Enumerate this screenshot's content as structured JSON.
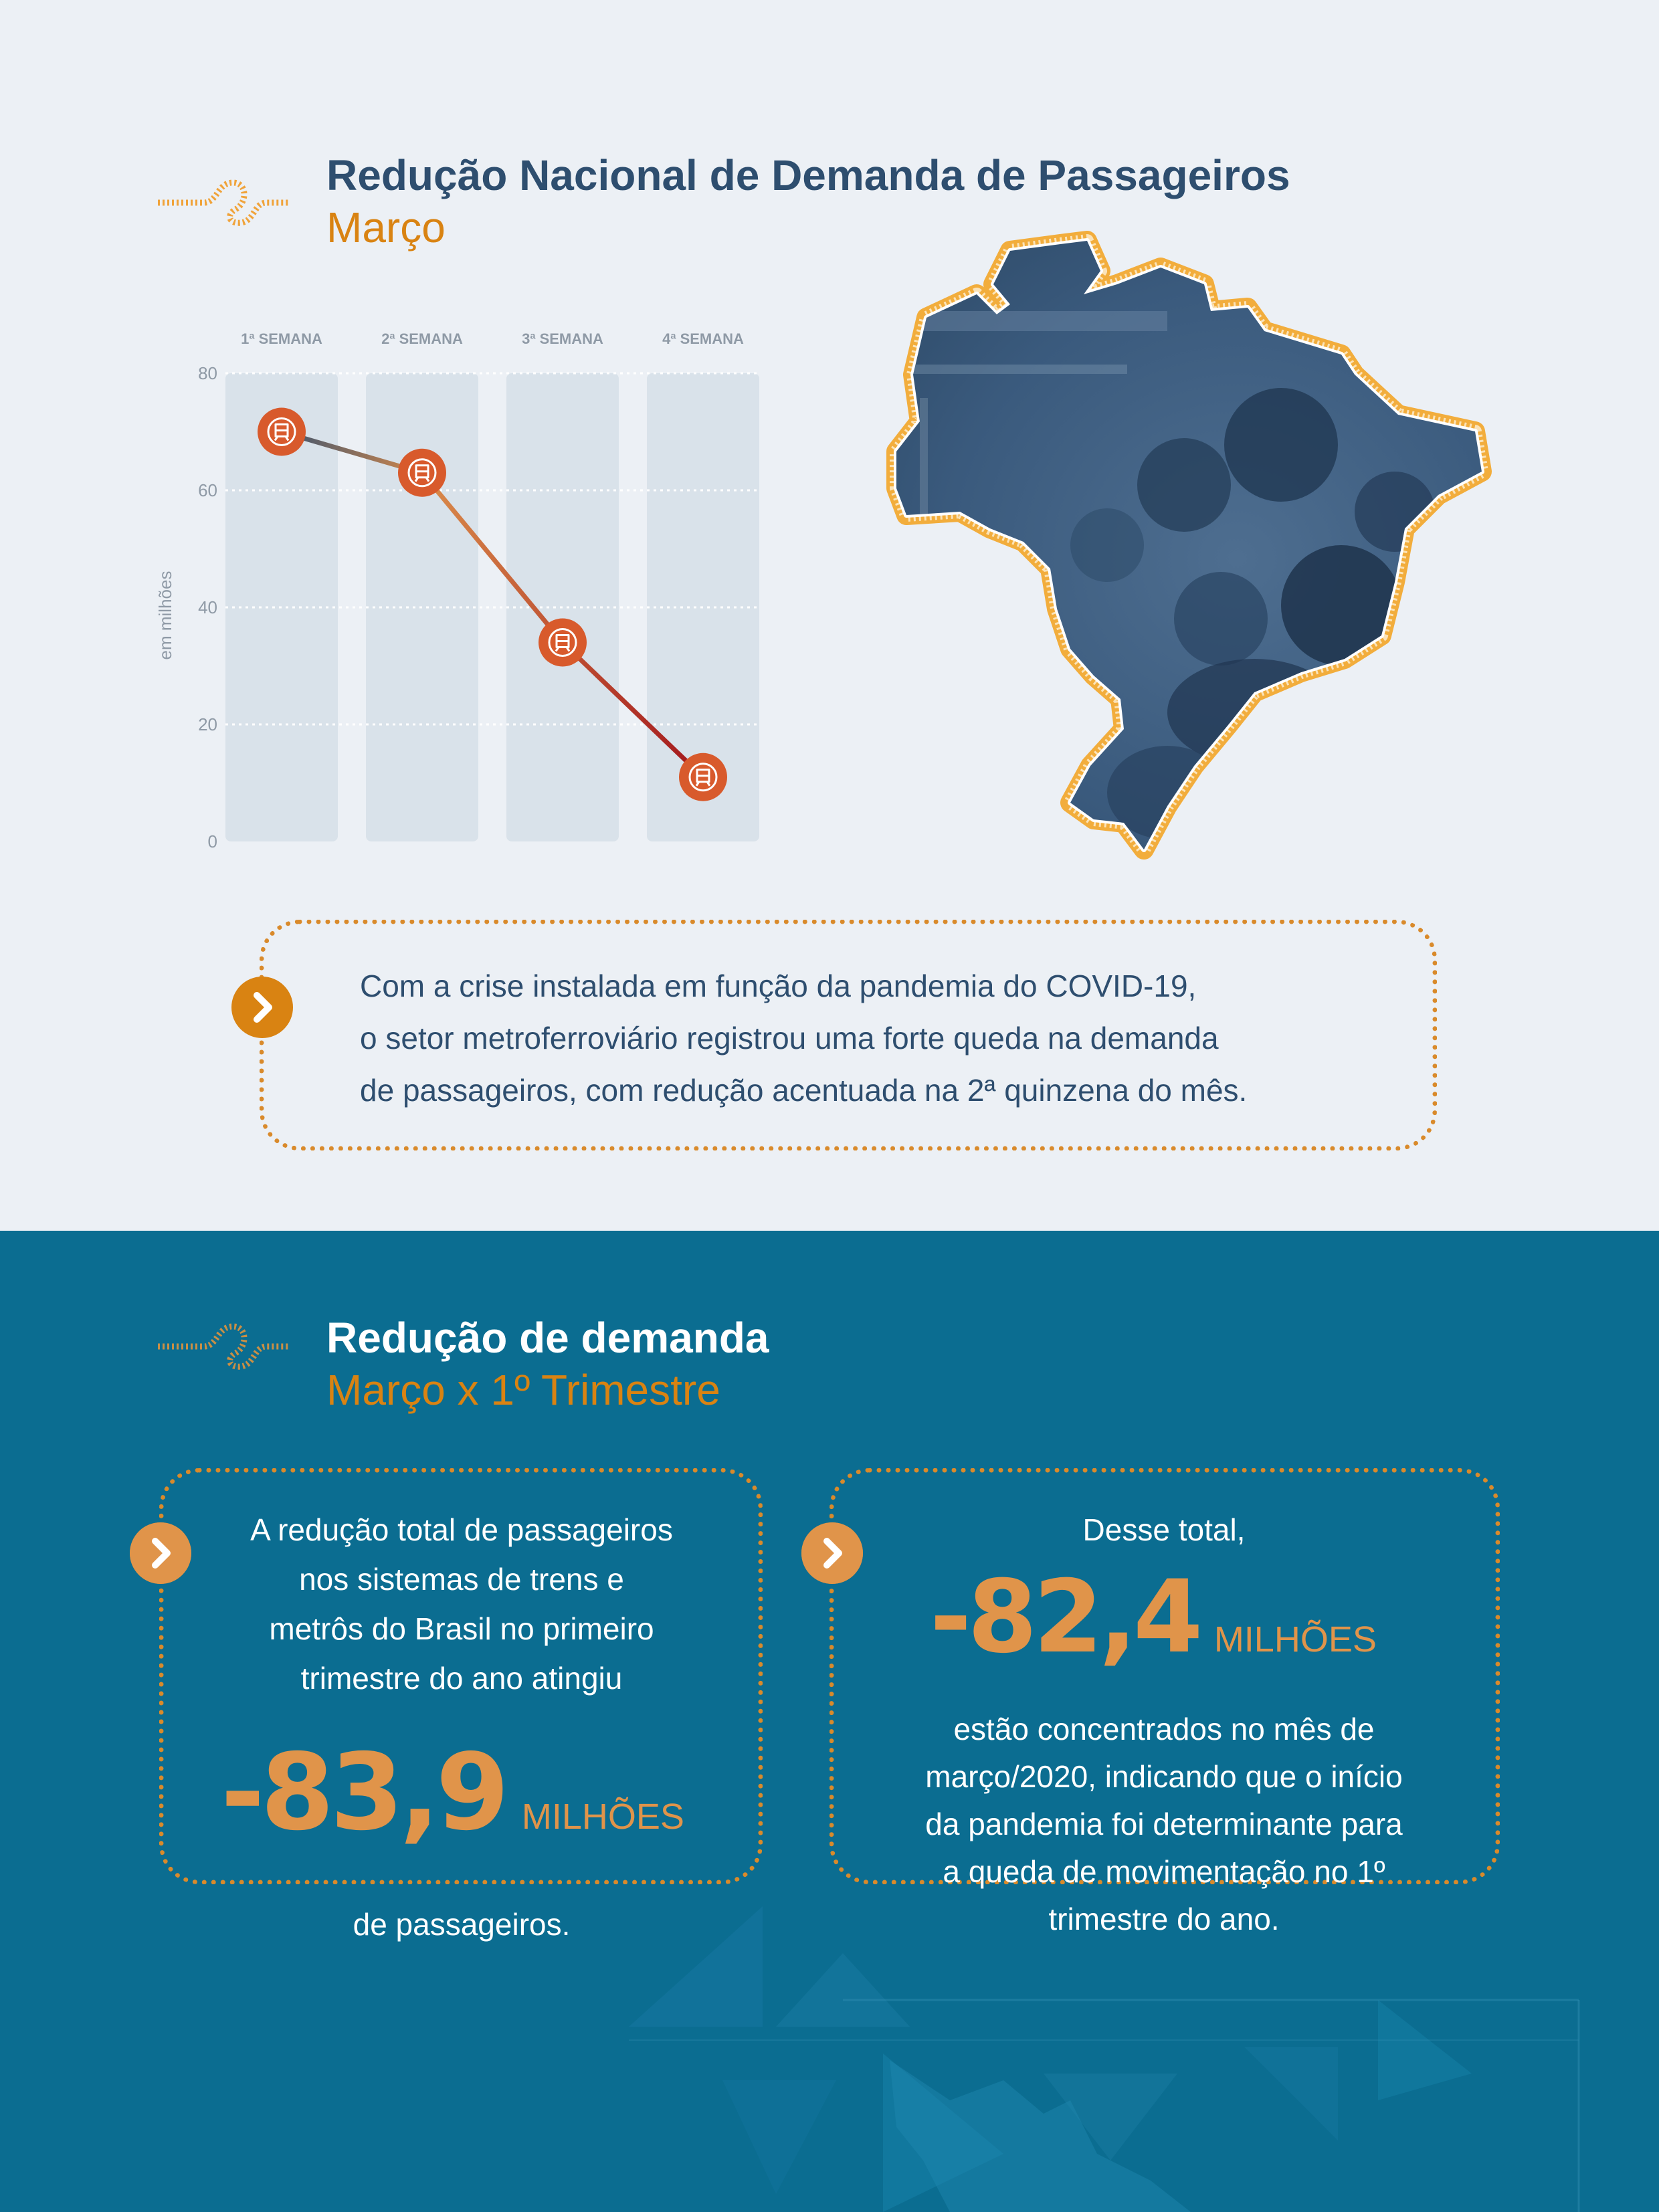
{
  "section1": {
    "title": "Redução Nacional de Demanda de Passageiros",
    "subtitle": "Março",
    "description_lines": [
      "Com a crise instalada em função da pandemia do COVID-19,",
      "o setor metroferroviário registrou uma forte queda na demanda",
      "de passageiros, com redução acentuada na 2ª quinzena do mês."
    ]
  },
  "chart_data": {
    "type": "line",
    "categories": [
      "1ª SEMANA",
      "2ª SEMANA",
      "3ª SEMANA",
      "4ª SEMANA"
    ],
    "values": [
      70,
      63,
      34,
      11
    ],
    "ylabel": "em milhões",
    "ylim": [
      0,
      80
    ],
    "yticks": [
      "0",
      "20",
      "40",
      "60",
      "80"
    ],
    "grid": true,
    "marker_icon": "train-icon",
    "colors": {
      "line_start": "#3b5470",
      "line_mid": "#d98a4a",
      "line_end": "#a3161c",
      "marker": "#d85a2c",
      "column": "#d9e2ea"
    }
  },
  "section2": {
    "title": "Redução de demanda",
    "subtitle": "Março x 1º Trimestre",
    "card1": {
      "text_lines": [
        "A redução total de passageiros",
        "nos sistemas de trens e",
        "metrôs do Brasil no primeiro",
        "trimestre do ano atingiu"
      ],
      "number": "-83,9",
      "unit": "MILHÕES",
      "footer": "de passageiros."
    },
    "card2": {
      "intro": "Desse total,",
      "number": "-82,4",
      "unit": "MILHÕES",
      "text_lines": [
        "estão concentrados no mês de",
        "março/2020, indicando que o início",
        "da pandemia foi determinante para",
        "a queda de movimentação no 1º",
        "trimestre do ano."
      ]
    }
  },
  "colors": {
    "navy": "#2e4e6f",
    "accent": "#d98312",
    "blue_bg": "#0b6d91",
    "light_bg": "#ecf0f5"
  }
}
